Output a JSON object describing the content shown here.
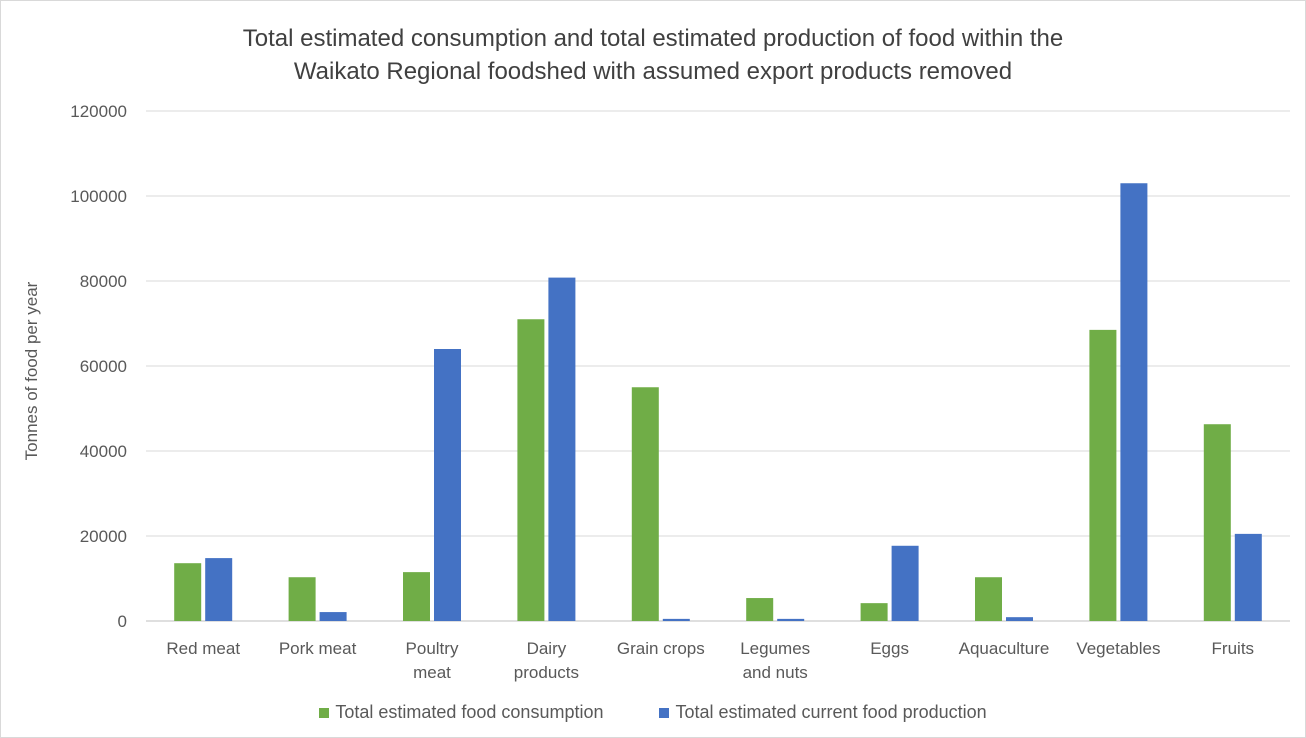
{
  "chart_data": {
    "type": "bar",
    "title_lines": [
      "Total estimated consumption and total estimated production of food within the",
      "Waikato Regional foodshed with assumed export products removed"
    ],
    "xlabel": "",
    "ylabel": "Tonnes of food per year",
    "ylim": [
      0,
      120000
    ],
    "yticks": [
      "0",
      "20000",
      "40000",
      "60000",
      "80000",
      "100000",
      "120000"
    ],
    "grid": true,
    "legend_position": "bottom",
    "categories": [
      [
        "Red meat"
      ],
      [
        "Pork meat"
      ],
      [
        "Poultry",
        "meat"
      ],
      [
        "Dairy",
        "products"
      ],
      [
        "Grain crops"
      ],
      [
        "Legumes",
        "and nuts"
      ],
      [
        "Eggs"
      ],
      [
        "Aquaculture"
      ],
      [
        "Vegetables"
      ],
      [
        "Fruits"
      ]
    ],
    "series": [
      {
        "name": "Total estimated food consumption",
        "color": "#70ad47",
        "values": [
          13600,
          10300,
          11500,
          71000,
          55000,
          5400,
          4200,
          10300,
          68500,
          46300
        ]
      },
      {
        "name": "Total estimated current food production",
        "color": "#4472c4",
        "values": [
          14800,
          2100,
          64000,
          80800,
          500,
          500,
          17700,
          900,
          103000,
          20500
        ]
      }
    ]
  }
}
